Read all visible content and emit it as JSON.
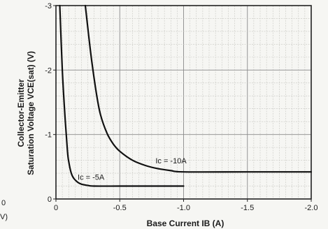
{
  "chart_data": {
    "type": "line",
    "ylabel_line1": "Collector-Emitter",
    "ylabel_line2": "Saturation Voltage VCE(sat) (V)",
    "xlabel": "Base Current IB (A)",
    "xlim": [
      0,
      2.0
    ],
    "ylim": [
      0,
      3
    ],
    "x_ticks": [
      {
        "value": 0,
        "label": "0"
      },
      {
        "value": 0.5,
        "label": "-0.5"
      },
      {
        "value": 1.0,
        "label": "-1.0"
      },
      {
        "value": 1.5,
        "label": "-1.5"
      },
      {
        "value": 2.0,
        "label": "-2.0"
      }
    ],
    "y_ticks": [
      {
        "value": 0,
        "label": "0"
      },
      {
        "value": 1,
        "label": "-1"
      },
      {
        "value": 2,
        "label": "-2"
      },
      {
        "value": 3,
        "label": "-3"
      }
    ],
    "grid": true,
    "edge_text": [
      "0",
      "V)"
    ],
    "series": [
      {
        "name": "Ic = -5A",
        "x": [
          0.03,
          0.05,
          0.07,
          0.09,
          0.1,
          0.12,
          0.14,
          0.17,
          0.2,
          0.25,
          0.3,
          0.5,
          0.7,
          1.0
        ],
        "y": [
          3.0,
          2.0,
          1.3,
          0.75,
          0.58,
          0.4,
          0.32,
          0.26,
          0.23,
          0.21,
          0.2,
          0.2,
          0.2,
          0.2
        ]
      },
      {
        "name": "Ic = -10A",
        "x": [
          0.23,
          0.25,
          0.27,
          0.29,
          0.32,
          0.35,
          0.4,
          0.45,
          0.5,
          0.6,
          0.7,
          0.8,
          0.9,
          1.0,
          1.5,
          2.0
        ],
        "y": [
          3.0,
          2.65,
          2.3,
          2.0,
          1.6,
          1.3,
          1.02,
          0.85,
          0.74,
          0.6,
          0.52,
          0.47,
          0.44,
          0.42,
          0.42,
          0.42
        ]
      }
    ],
    "annotations": [
      {
        "series": 0,
        "text": "Ic = -5A",
        "x": 0.17,
        "y": 0.3
      },
      {
        "series": 1,
        "text": "Ic = -10A",
        "x": 0.78,
        "y": 0.55
      }
    ]
  }
}
